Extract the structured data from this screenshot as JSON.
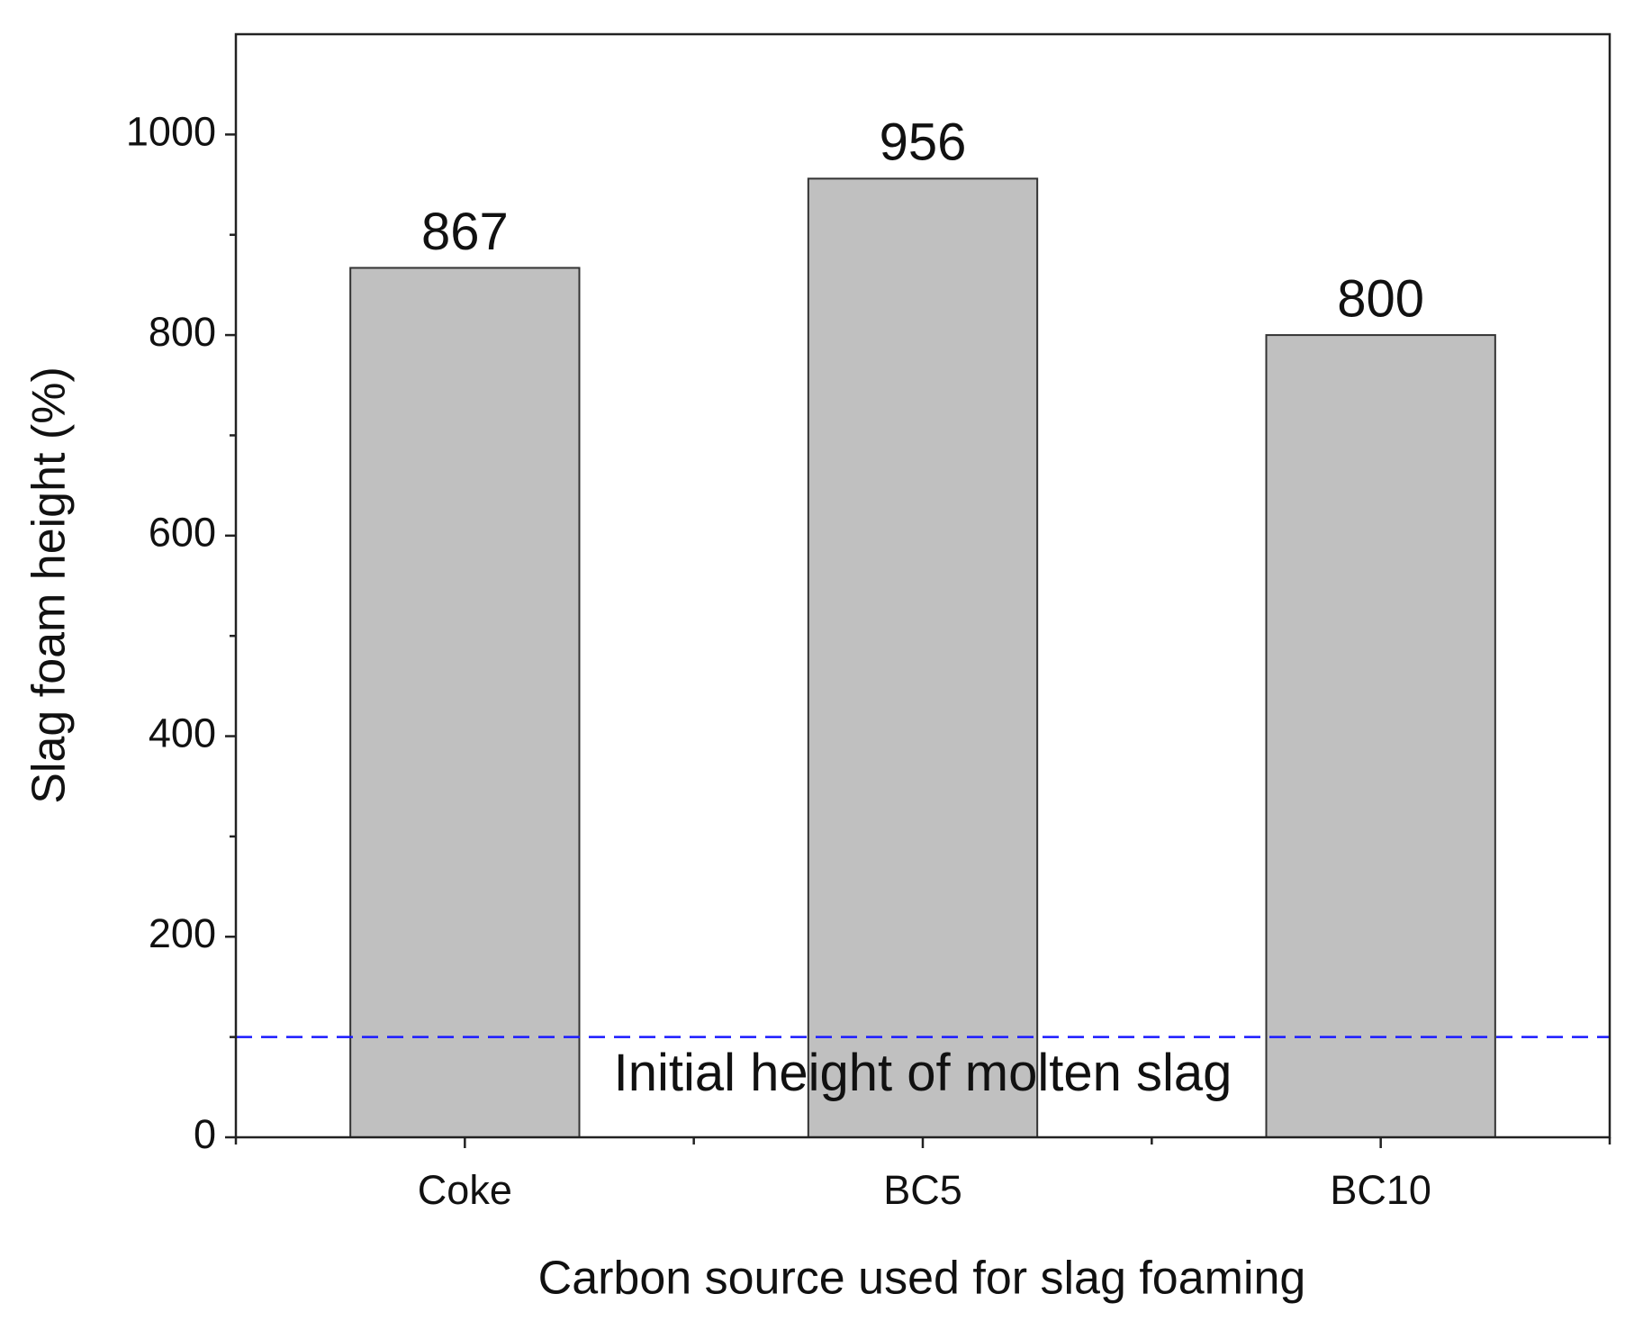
{
  "chart_data": {
    "type": "bar",
    "x_label": "Carbon source used for slag foaming",
    "y_label": "Slag foam height (%)",
    "categories": [
      "Coke",
      "BC5",
      "BC10"
    ],
    "values": [
      867,
      956,
      800
    ],
    "color": "#c0c0c0",
    "ylim": [
      0,
      1100
    ],
    "yticks": [
      0,
      200,
      400,
      600,
      800,
      1000
    ],
    "reference_line": {
      "value": 100,
      "label": "Initial height of molten slag",
      "color": "#1a1aff"
    }
  }
}
